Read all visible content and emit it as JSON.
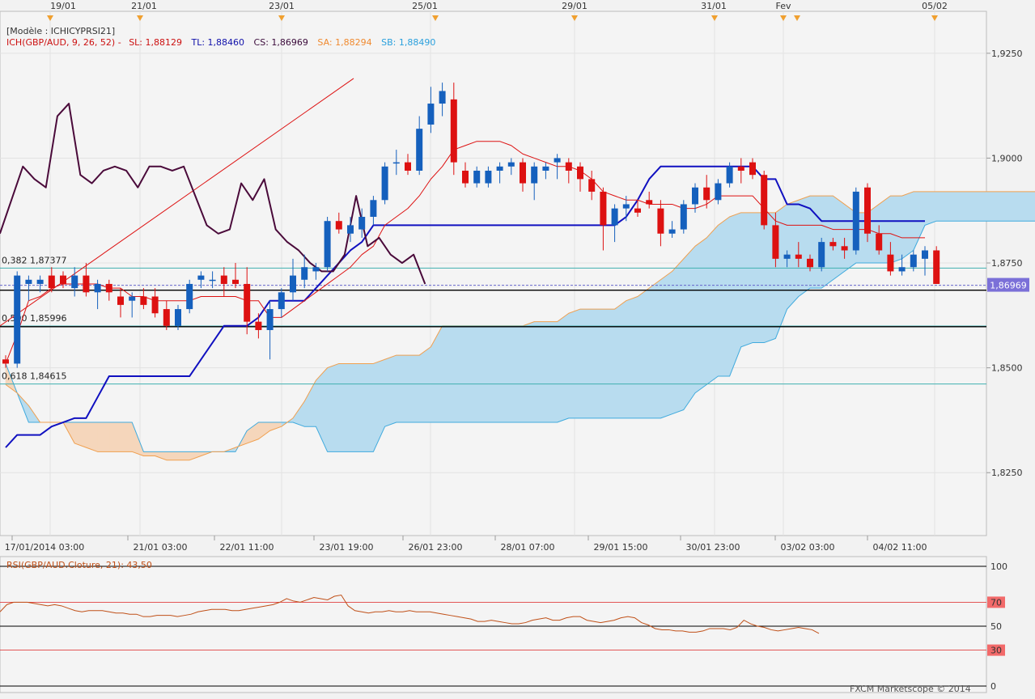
{
  "header": {
    "model_label": "[Modèle : ICHICYPRSI21]",
    "ich_prefix": "ICH(GBP/AUD, 9, 26, 52) -",
    "sl_label": "SL: 1,88129",
    "tl_label": "TL: 1,88460",
    "cs_label": "CS: 1,86969",
    "sa_label": "SA: 1,88294",
    "sb_label": "SB: 1,88490"
  },
  "top_dates": [
    "19/01",
    "21/01",
    "23/01",
    "25/01",
    "29/01",
    "31/01",
    "Fev",
    "05/02"
  ],
  "colors": {
    "bull": "#1560bd",
    "bear": "#dd1111",
    "tenkan": "#dd1111",
    "kijun": "#1010c0",
    "chikou": "#4a0a3a",
    "senkou_a": "#f0a050",
    "senkou_b": "#40aadd",
    "cloud_bull": "#b8dcef",
    "cloud_bear": "#f5d6bb",
    "fib_line": "#40b0b0",
    "rsi_line": "#c05018"
  },
  "fib_levels": [
    {
      "label": "0,382 1,87377",
      "value": 1.87377
    },
    {
      "label": "0,500 1,85996",
      "value": 1.85996
    },
    {
      "label": "0,618 1,84615",
      "value": 1.84615
    }
  ],
  "current_price": {
    "label": "1,86969",
    "value": 1.86969
  },
  "chart_data": [
    {
      "type": "candlestick",
      "title": "ICH(GBP/AUD, 9, 26, 52)",
      "y_ticks": [
        "1,8250",
        "1,8500",
        "1,8750",
        "1,9000",
        "1,9250"
      ],
      "ylim": [
        1.81,
        1.935
      ],
      "x_ticks": [
        "17/01/2014 03:00",
        "21/01 03:00",
        "22/01 11:00",
        "23/01 19:00",
        "26/01 23:00",
        "28/01 07:00",
        "29/01 15:00",
        "30/01 23:00",
        "03/02 03:00",
        "04/02 11:00"
      ],
      "candles": [
        [
          1.852,
          1.853,
          1.85,
          1.851
        ],
        [
          1.851,
          1.873,
          1.85,
          1.872
        ],
        [
          1.87,
          1.872,
          1.866,
          1.871
        ],
        [
          1.87,
          1.872,
          1.868,
          1.871
        ],
        [
          1.872,
          1.874,
          1.868,
          1.869
        ],
        [
          1.872,
          1.873,
          1.869,
          1.87
        ],
        [
          1.869,
          1.874,
          1.867,
          1.872
        ],
        [
          1.872,
          1.875,
          1.867,
          1.868
        ],
        [
          1.868,
          1.871,
          1.864,
          1.87
        ],
        [
          1.87,
          1.871,
          1.866,
          1.868
        ],
        [
          1.867,
          1.869,
          1.862,
          1.865
        ],
        [
          1.866,
          1.868,
          1.862,
          1.867
        ],
        [
          1.867,
          1.869,
          1.864,
          1.865
        ],
        [
          1.867,
          1.869,
          1.862,
          1.863
        ],
        [
          1.864,
          1.866,
          1.859,
          1.86
        ],
        [
          1.86,
          1.865,
          1.859,
          1.864
        ],
        [
          1.864,
          1.871,
          1.863,
          1.87
        ],
        [
          1.871,
          1.873,
          1.869,
          1.872
        ],
        [
          1.871,
          1.873,
          1.869,
          1.871
        ],
        [
          1.872,
          1.874,
          1.867,
          1.87
        ],
        [
          1.871,
          1.875,
          1.869,
          1.87
        ],
        [
          1.87,
          1.874,
          1.858,
          1.861
        ],
        [
          1.861,
          1.863,
          1.857,
          1.859
        ],
        [
          1.859,
          1.866,
          1.852,
          1.864
        ],
        [
          1.864,
          1.869,
          1.862,
          1.868
        ],
        [
          1.868,
          1.876,
          1.866,
          1.872
        ],
        [
          1.871,
          1.877,
          1.869,
          1.874
        ],
        [
          1.873,
          1.875,
          1.871,
          1.874
        ],
        [
          1.874,
          1.886,
          1.873,
          1.885
        ],
        [
          1.885,
          1.887,
          1.882,
          1.883
        ],
        [
          1.882,
          1.886,
          1.88,
          1.884
        ],
        [
          1.883,
          1.888,
          1.881,
          1.886
        ],
        [
          1.886,
          1.891,
          1.884,
          1.89
        ],
        [
          1.89,
          1.899,
          1.889,
          1.898
        ],
        [
          1.899,
          1.902,
          1.896,
          1.899
        ],
        [
          1.899,
          1.901,
          1.896,
          1.897
        ],
        [
          1.897,
          1.91,
          1.896,
          1.907
        ],
        [
          1.908,
          1.917,
          1.906,
          1.913
        ],
        [
          1.913,
          1.918,
          1.91,
          1.916
        ],
        [
          1.914,
          1.918,
          1.896,
          1.899
        ],
        [
          1.897,
          1.899,
          1.893,
          1.894
        ],
        [
          1.894,
          1.898,
          1.893,
          1.897
        ],
        [
          1.894,
          1.898,
          1.893,
          1.897
        ],
        [
          1.897,
          1.899,
          1.894,
          1.898
        ],
        [
          1.898,
          1.9,
          1.896,
          1.899
        ],
        [
          1.899,
          1.9,
          1.892,
          1.894
        ],
        [
          1.894,
          1.899,
          1.89,
          1.898
        ],
        [
          1.897,
          1.899,
          1.895,
          1.898
        ],
        [
          1.899,
          1.901,
          1.895,
          1.9
        ],
        [
          1.899,
          1.9,
          1.894,
          1.897
        ],
        [
          1.898,
          1.899,
          1.892,
          1.895
        ],
        [
          1.895,
          1.897,
          1.89,
          1.892
        ],
        [
          1.892,
          1.893,
          1.878,
          1.884
        ],
        [
          1.884,
          1.889,
          1.88,
          1.888
        ],
        [
          1.888,
          1.891,
          1.885,
          1.889
        ],
        [
          1.888,
          1.89,
          1.886,
          1.887
        ],
        [
          1.89,
          1.892,
          1.888,
          1.889
        ],
        [
          1.888,
          1.89,
          1.879,
          1.882
        ],
        [
          1.882,
          1.885,
          1.881,
          1.883
        ],
        [
          1.883,
          1.89,
          1.882,
          1.889
        ],
        [
          1.889,
          1.894,
          1.887,
          1.893
        ],
        [
          1.893,
          1.896,
          1.888,
          1.89
        ],
        [
          1.89,
          1.895,
          1.889,
          1.894
        ],
        [
          1.894,
          1.899,
          1.893,
          1.898
        ],
        [
          1.898,
          1.9,
          1.894,
          1.897
        ],
        [
          1.899,
          1.9,
          1.895,
          1.896
        ],
        [
          1.896,
          1.897,
          1.883,
          1.884
        ],
        [
          1.884,
          1.887,
          1.874,
          1.876
        ],
        [
          1.876,
          1.878,
          1.874,
          1.877
        ],
        [
          1.877,
          1.88,
          1.874,
          1.876
        ],
        [
          1.876,
          1.877,
          1.873,
          1.874
        ],
        [
          1.874,
          1.881,
          1.873,
          1.88
        ],
        [
          1.88,
          1.881,
          1.878,
          1.879
        ],
        [
          1.879,
          1.881,
          1.876,
          1.878
        ],
        [
          1.878,
          1.893,
          1.877,
          1.892
        ],
        [
          1.893,
          1.894,
          1.88,
          1.882
        ],
        [
          1.882,
          1.884,
          1.877,
          1.878
        ],
        [
          1.877,
          1.88,
          1.872,
          1.873
        ],
        [
          1.873,
          1.877,
          1.872,
          1.874
        ],
        [
          1.874,
          1.878,
          1.873,
          1.877
        ],
        [
          1.876,
          1.879,
          1.872,
          1.878
        ],
        [
          1.878,
          1.879,
          1.87,
          1.87
        ]
      ],
      "tenkan_sen": [
        1.851,
        1.858,
        1.866,
        1.867,
        1.869,
        1.87,
        1.87,
        1.87,
        1.87,
        1.869,
        1.869,
        1.867,
        1.867,
        1.866,
        1.866,
        1.866,
        1.866,
        1.867,
        1.867,
        1.867,
        1.867,
        1.866,
        1.866,
        1.862,
        1.862,
        1.864,
        1.866,
        1.868,
        1.87,
        1.872,
        1.874,
        1.877,
        1.879,
        1.884,
        1.886,
        1.888,
        1.891,
        1.895,
        1.898,
        1.902,
        1.903,
        1.904,
        1.904,
        1.904,
        1.903,
        1.901,
        1.9,
        1.899,
        1.898,
        1.898,
        1.897,
        1.895,
        1.892,
        1.891,
        1.89,
        1.89,
        1.889,
        1.889,
        1.889,
        1.888,
        1.888,
        1.889,
        1.891,
        1.891,
        1.891,
        1.891,
        1.888,
        1.885,
        1.884,
        1.884,
        1.884,
        1.884,
        1.883,
        1.883,
        1.883,
        1.883,
        1.882,
        1.882,
        1.881,
        1.881,
        1.881
      ],
      "kijun_sen": [
        1.831,
        1.834,
        1.834,
        1.834,
        1.836,
        1.837,
        1.838,
        1.838,
        1.843,
        1.848,
        1.848,
        1.848,
        1.848,
        1.848,
        1.848,
        1.848,
        1.848,
        1.852,
        1.856,
        1.86,
        1.86,
        1.86,
        1.862,
        1.866,
        1.866,
        1.866,
        1.866,
        1.869,
        1.872,
        1.875,
        1.878,
        1.88,
        1.884,
        1.884,
        1.884,
        1.884,
        1.884,
        1.884,
        1.884,
        1.884,
        1.884,
        1.884,
        1.884,
        1.884,
        1.884,
        1.884,
        1.884,
        1.884,
        1.884,
        1.884,
        1.884,
        1.884,
        1.884,
        1.884,
        1.886,
        1.89,
        1.895,
        1.898,
        1.898,
        1.898,
        1.898,
        1.898,
        1.898,
        1.898,
        1.898,
        1.898,
        1.895,
        1.895,
        1.889,
        1.889,
        1.888,
        1.885,
        1.885,
        1.885,
        1.885,
        1.885,
        1.885,
        1.885,
        1.885,
        1.885,
        1.885
      ],
      "chikou_span": [
        1.882,
        1.89,
        1.898,
        1.895,
        1.893,
        1.91,
        1.913,
        1.896,
        1.894,
        1.897,
        1.898,
        1.897,
        1.893,
        1.898,
        1.898,
        1.897,
        1.898,
        1.891,
        1.884,
        1.882,
        1.883,
        1.894,
        1.89,
        1.895,
        1.883,
        1.88,
        1.878,
        1.875,
        1.873,
        1.873,
        1.877,
        1.891,
        1.879,
        1.881,
        1.877,
        1.875,
        1.877,
        1.87
      ],
      "senkou_a": [
        1.846,
        1.844,
        1.841,
        1.837,
        1.837,
        1.837,
        1.832,
        1.831,
        1.83,
        1.83,
        1.83,
        1.83,
        1.829,
        1.829,
        1.828,
        1.828,
        1.828,
        1.829,
        1.83,
        1.83,
        1.831,
        1.832,
        1.833,
        1.835,
        1.836,
        1.838,
        1.842,
        1.847,
        1.85,
        1.851,
        1.851,
        1.851,
        1.851,
        1.852,
        1.853,
        1.853,
        1.853,
        1.855,
        1.86,
        1.86,
        1.86,
        1.86,
        1.86,
        1.86,
        1.86,
        1.86,
        1.861,
        1.861,
        1.861,
        1.863,
        1.864,
        1.864,
        1.864,
        1.864,
        1.866,
        1.867,
        1.869,
        1.871,
        1.873,
        1.876,
        1.879,
        1.881,
        1.884,
        1.886,
        1.887,
        1.887,
        1.887,
        1.887,
        1.889,
        1.89,
        1.891,
        1.891,
        1.891,
        1.889,
        1.887,
        1.887,
        1.889,
        1.891,
        1.891,
        1.892,
        1.892,
        1.892,
        1.892,
        1.892,
        1.892,
        1.892,
        1.892,
        1.892,
        1.892,
        1.892,
        1.892
      ],
      "senkou_b": [
        1.851,
        1.844,
        1.837,
        1.837,
        1.837,
        1.837,
        1.837,
        1.837,
        1.837,
        1.837,
        1.837,
        1.837,
        1.83,
        1.83,
        1.83,
        1.83,
        1.83,
        1.83,
        1.83,
        1.83,
        1.83,
        1.835,
        1.837,
        1.837,
        1.837,
        1.837,
        1.836,
        1.836,
        1.83,
        1.83,
        1.83,
        1.83,
        1.83,
        1.836,
        1.837,
        1.837,
        1.837,
        1.837,
        1.837,
        1.837,
        1.837,
        1.837,
        1.837,
        1.837,
        1.837,
        1.837,
        1.837,
        1.837,
        1.837,
        1.838,
        1.838,
        1.838,
        1.838,
        1.838,
        1.838,
        1.838,
        1.838,
        1.838,
        1.839,
        1.84,
        1.844,
        1.846,
        1.848,
        1.848,
        1.855,
        1.856,
        1.856,
        1.857,
        1.864,
        1.867,
        1.869,
        1.869,
        1.871,
        1.873,
        1.875,
        1.875,
        1.875,
        1.875,
        1.876,
        1.878,
        1.884,
        1.885,
        1.885,
        1.885,
        1.885,
        1.885,
        1.885,
        1.885,
        1.885,
        1.885,
        1.885
      ]
    },
    {
      "type": "line",
      "title": "RSI(GBP/AUD.Cloture, 21): 43,50",
      "ylim": [
        0,
        100
      ],
      "y_ticks": [
        "100",
        "70",
        "50",
        "30",
        "0"
      ],
      "reference_levels": [
        70,
        50,
        30
      ],
      "values": [
        62,
        68,
        70,
        70,
        70,
        69,
        68,
        67,
        68,
        67,
        65,
        63,
        62,
        63,
        63,
        63,
        62,
        61,
        61,
        60,
        60,
        58,
        58,
        59,
        59,
        59,
        58,
        59,
        60,
        62,
        63,
        64,
        64,
        64,
        63,
        63,
        64,
        65,
        66,
        67,
        68,
        70,
        73,
        71,
        70,
        72,
        74,
        73,
        72,
        75,
        76,
        67,
        63,
        62,
        61,
        62,
        62,
        63,
        62,
        62,
        63,
        62,
        62,
        62,
        61,
        60,
        59,
        58,
        57,
        56,
        54,
        54,
        55,
        54,
        53,
        52,
        52,
        53,
        55,
        56,
        57,
        55,
        55,
        57,
        58,
        58,
        55,
        54,
        53,
        54,
        55,
        57,
        58,
        57,
        53,
        51,
        48,
        47,
        47,
        46,
        46,
        45,
        45,
        46,
        48,
        48,
        48,
        47,
        49,
        55,
        52,
        50,
        49,
        47,
        46,
        47,
        48,
        49,
        48,
        47,
        44
      ]
    }
  ],
  "footer": {
    "copyright": "FXCM Marketscope © 2014"
  }
}
